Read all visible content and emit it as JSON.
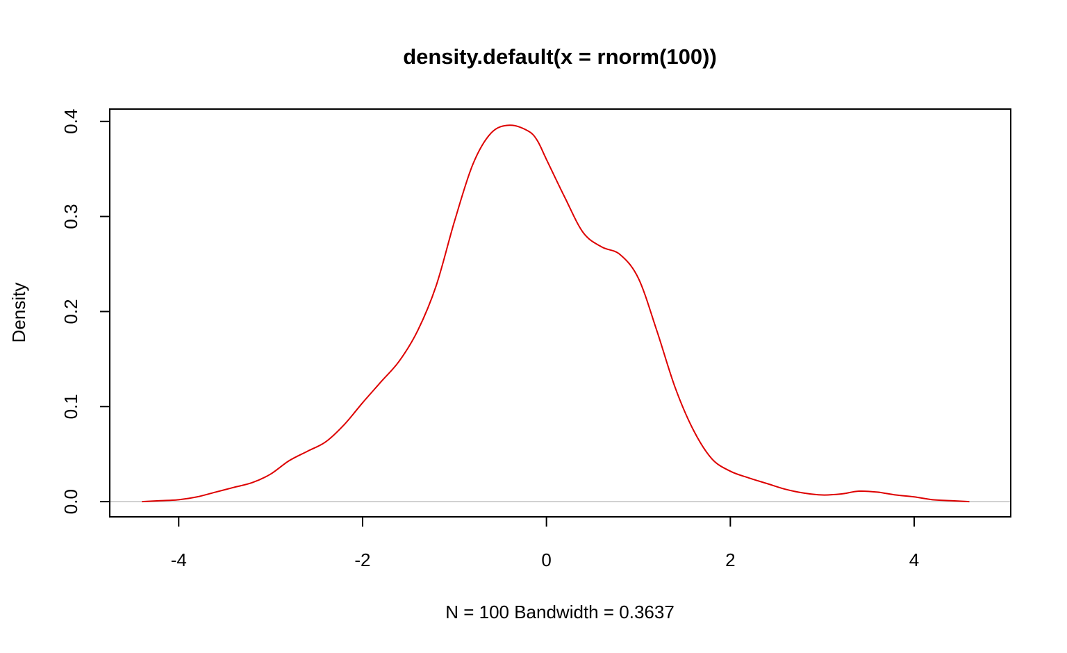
{
  "chart_data": {
    "type": "line",
    "title": "density.default(x = rnorm(100))",
    "xlabel": "N = 100   Bandwidth = 0.3637",
    "ylabel": "Density",
    "xlim": [
      -4.75,
      5.05
    ],
    "ylim": [
      -0.016,
      0.413
    ],
    "x_ticks": [
      -4,
      -2,
      0,
      2,
      4
    ],
    "x_tick_labels": [
      "-4",
      "-2",
      "0",
      "2",
      "4"
    ],
    "y_ticks": [
      0.0,
      0.1,
      0.2,
      0.3,
      0.4
    ],
    "y_tick_labels": [
      "0.0",
      "0.1",
      "0.2",
      "0.3",
      "0.4"
    ],
    "grid": false,
    "baseline": 0,
    "series": [
      {
        "color": "#dd0000",
        "x": [
          -4.4,
          -4.2,
          -4.0,
          -3.8,
          -3.6,
          -3.4,
          -3.2,
          -3.0,
          -2.8,
          -2.6,
          -2.4,
          -2.2,
          -2.0,
          -1.8,
          -1.6,
          -1.4,
          -1.2,
          -1.0,
          -0.8,
          -0.6,
          -0.4,
          -0.2,
          -0.1,
          0.0,
          0.2,
          0.4,
          0.6,
          0.8,
          1.0,
          1.2,
          1.4,
          1.6,
          1.8,
          2.0,
          2.2,
          2.4,
          2.6,
          2.8,
          3.0,
          3.2,
          3.4,
          3.6,
          3.8,
          4.0,
          4.2,
          4.4,
          4.6
        ],
        "y": [
          0.0,
          0.001,
          0.002,
          0.005,
          0.01,
          0.015,
          0.02,
          0.029,
          0.043,
          0.053,
          0.063,
          0.081,
          0.104,
          0.126,
          0.148,
          0.18,
          0.227,
          0.295,
          0.355,
          0.388,
          0.396,
          0.39,
          0.38,
          0.36,
          0.32,
          0.283,
          0.268,
          0.26,
          0.235,
          0.18,
          0.12,
          0.075,
          0.045,
          0.032,
          0.025,
          0.019,
          0.013,
          0.009,
          0.007,
          0.008,
          0.011,
          0.01,
          0.007,
          0.005,
          0.002,
          0.001,
          0.0
        ]
      }
    ]
  }
}
